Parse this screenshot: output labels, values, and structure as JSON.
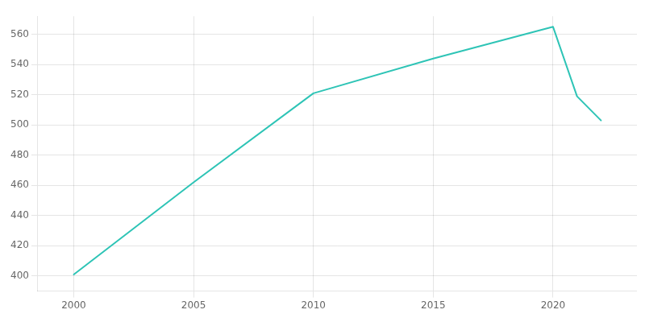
{
  "chart_data": {
    "type": "line",
    "x": [
      2000,
      2005,
      2010,
      2015,
      2020,
      2021,
      2022
    ],
    "values": [
      401,
      462,
      521,
      544,
      565,
      519,
      503
    ],
    "color": "#2ec4b6",
    "xlim": [
      1998.5,
      2023.5
    ],
    "xticks": [
      2000,
      2005,
      2010,
      2015,
      2020
    ],
    "ylim": [
      390,
      572
    ],
    "yticks": [
      400,
      420,
      440,
      460,
      480,
      500,
      520,
      540,
      560
    ],
    "grid": true
  }
}
